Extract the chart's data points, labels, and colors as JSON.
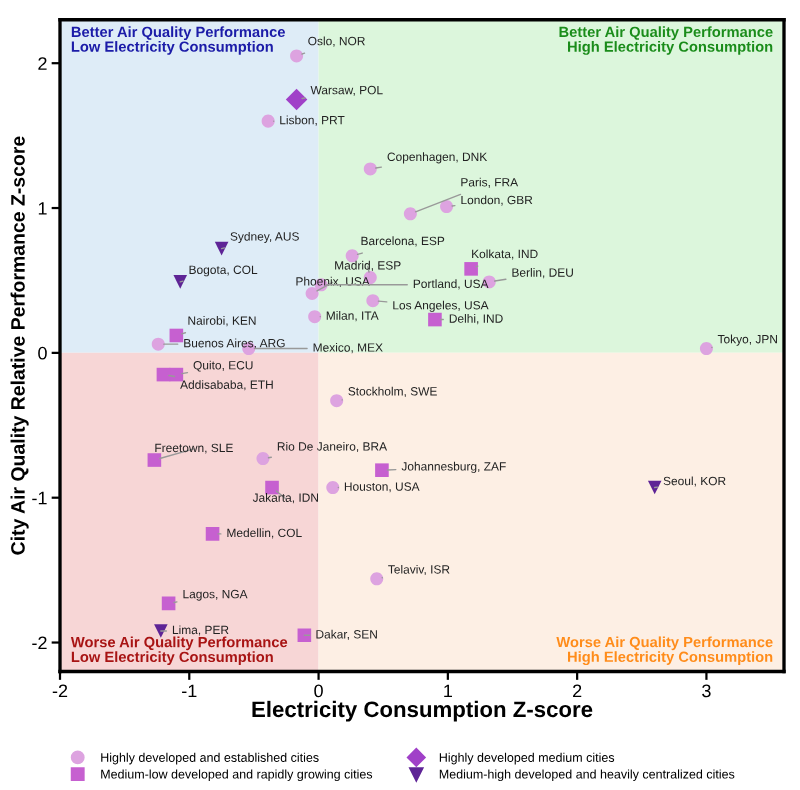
{
  "chart_data": {
    "type": "scatter",
    "xlabel": "Electricity Consumption Z-score",
    "ylabel": "City Air Quality Relative Performance Z-score",
    "xlim": [
      -2,
      3.6
    ],
    "ylim": [
      -2.2,
      2.3
    ],
    "xticks": [
      -2,
      -1,
      0,
      1,
      2,
      3
    ],
    "yticks": [
      -2,
      -1,
      0,
      1,
      2
    ],
    "grid": false,
    "legend": "bottom",
    "annotations": [
      "Better Air Quality Performance\nLow Electricity Consumption",
      "Better Air Quality Performance\nHigh Electricity Consumption",
      "Worse Air Quality Performance\nLow Electricity Consumption",
      "Worse Air Quality Performance\nHigh Electricity Consumption"
    ],
    "series": [
      {
        "name": "Highly developed and established cities",
        "color": "#dda3e0",
        "marker": "circle",
        "x": [
          -0.17,
          -0.39,
          0.4,
          0.71,
          0.99,
          0.26,
          0.4,
          -0.05,
          0.02,
          1.32,
          0.42,
          -0.03,
          3.0,
          -1.24,
          -0.54,
          0.14,
          -0.43,
          0.11,
          0.45
        ],
        "values": [
          2.05,
          1.6,
          1.27,
          0.96,
          1.01,
          0.67,
          0.52,
          0.41,
          0.47,
          0.49,
          0.36,
          0.25,
          0.03,
          0.06,
          0.03,
          -0.33,
          -0.73,
          -0.93,
          -1.56
        ],
        "value_labels": [
          "Oslo, NOR",
          "Lisbon, PRT",
          "Copenhagen, DNK",
          "Paris, FRA",
          "London, GBR",
          "Barcelona, ESP",
          "Madrid, ESP",
          "Phoenix, USA",
          "Portland, USA",
          "Berlin, DEU",
          "Los Angeles, USA",
          "Milan, ITA",
          "Tokyo, JPN",
          "Buenos Aires, ARG",
          "Mexico, MEX",
          "Stockholm, SWE",
          "Rio De Janeiro, BRA",
          "Houston, USA",
          "Telaviv, ISR"
        ]
      },
      {
        "name": "Medium-low developed and rapidly growing cities",
        "color": "#c660d0",
        "marker": "square",
        "x": [
          1.18,
          0.9,
          -1.1,
          -1.1,
          -1.2,
          -1.27,
          -0.36,
          0.49,
          -0.82,
          -1.16,
          -0.11
        ],
        "values": [
          0.58,
          0.23,
          0.12,
          -0.15,
          -0.15,
          -0.74,
          -0.93,
          -0.81,
          -1.25,
          -1.73,
          -1.95
        ],
        "value_labels": [
          "Kolkata, IND",
          "Delhi, IND",
          "Nairobi, KEN",
          "Quito, ECU",
          "Addisababa, ETH",
          "Freetown, SLE",
          "Jakarta, IDN",
          "Johannesburg, ZAF",
          "Medellin, COL",
          "Lagos, NGA",
          "Dakar, SEN"
        ]
      },
      {
        "name": "Highly developed medium cities",
        "color": "#a040c8",
        "marker": "diamond",
        "x": [
          -0.17
        ],
        "values": [
          1.75
        ],
        "value_labels": [
          "Warsaw, POL"
        ]
      },
      {
        "name": "Medium-high developed and heavily centralized cities",
        "color": "#5e2496",
        "marker": "triangle",
        "x": [
          -0.75,
          -1.07,
          -1.22,
          2.6
        ],
        "values": [
          0.72,
          0.49,
          -1.92,
          -0.93
        ],
        "value_labels": [
          "Sydney, AUS",
          "Bogota, COL",
          "Lima, PER",
          "Seoul, KOR"
        ]
      }
    ]
  }
}
